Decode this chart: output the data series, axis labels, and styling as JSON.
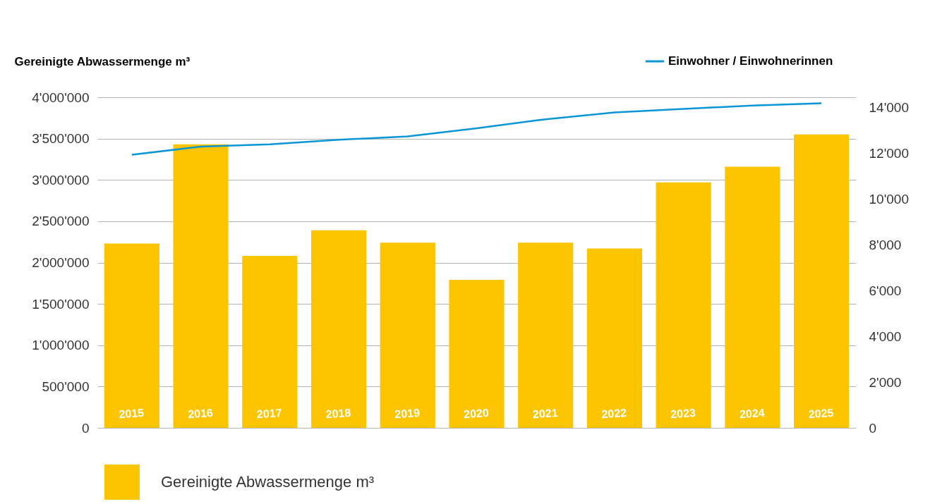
{
  "chart_data": {
    "type": "bar",
    "ylabel": "Gereinigte Abwassermenge m³",
    "categories": [
      "2015",
      "2016",
      "2017",
      "2018",
      "2019",
      "2020",
      "2021",
      "2022",
      "2023",
      "2024",
      "2025"
    ],
    "series": [
      {
        "name": "Gereinigte Abwassermenge m³",
        "color": "#fcc500",
        "values": [
          2230000,
          3430000,
          2080000,
          2390000,
          2240000,
          1790000,
          2240000,
          2170000,
          2970000,
          3160000,
          3550000
        ]
      },
      {
        "name": "Einwohner / Einwohnerinnen",
        "type": "line",
        "axis": "y2",
        "color": "#0a96d6",
        "values": [
          11950,
          12300,
          12400,
          12600,
          12750,
          13100,
          13500,
          13800,
          13950,
          14100,
          14200
        ]
      }
    ],
    "ylim": [
      0,
      4000000
    ],
    "yticks": [
      {
        "value": 0,
        "label": "0"
      },
      {
        "value": 500000,
        "label": "500'000"
      },
      {
        "value": 1000000,
        "label": "1'000'000"
      },
      {
        "value": 1500000,
        "label": "1'500'000"
      },
      {
        "value": 2000000,
        "label": "2'000'000"
      },
      {
        "value": 2500000,
        "label": "2'500'000"
      },
      {
        "value": 3000000,
        "label": "3'000'000"
      },
      {
        "value": 3500000,
        "label": "3'500'000"
      },
      {
        "value": 4000000,
        "label": "4'000'000"
      }
    ],
    "y2lim": [
      0,
      14460
    ],
    "y2ticks": [
      {
        "value": 0,
        "label": "0"
      },
      {
        "value": 2000,
        "label": "2'000"
      },
      {
        "value": 4000,
        "label": "4'000"
      },
      {
        "value": 6000,
        "label": "6'000"
      },
      {
        "value": 8000,
        "label": "8'000"
      },
      {
        "value": 10000,
        "label": "10'000"
      },
      {
        "value": 12000,
        "label": "12'000"
      },
      {
        "value": 14000,
        "label": "14'000"
      }
    ],
    "grid": "y",
    "legend": "bottom left"
  }
}
